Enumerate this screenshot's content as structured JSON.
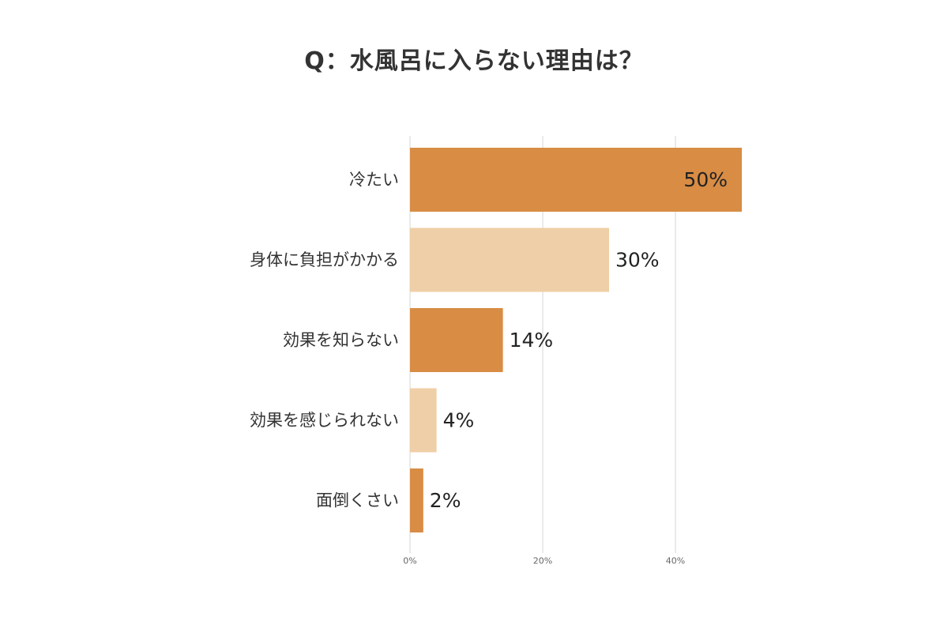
{
  "chart_data": {
    "type": "bar",
    "orientation": "horizontal",
    "title": "Q：水風呂に入らない理由は？",
    "categories": [
      "冷たい",
      "身体に負担がかかる",
      "効果を知らない",
      "効果を感じられない",
      "面倒くさい"
    ],
    "values": [
      50,
      30,
      14,
      4,
      2
    ],
    "value_labels": [
      "50%",
      "30%",
      "14%",
      "4%",
      "2%"
    ],
    "xlim": [
      0,
      50
    ],
    "x_ticks": [
      0,
      20,
      40
    ],
    "x_tick_labels": [
      "0%",
      "20%",
      "40%"
    ],
    "grid": true,
    "bar_colors": [
      "#d88c44",
      "#efcfa7",
      "#d88c44",
      "#efcfa7",
      "#d88c44"
    ]
  }
}
